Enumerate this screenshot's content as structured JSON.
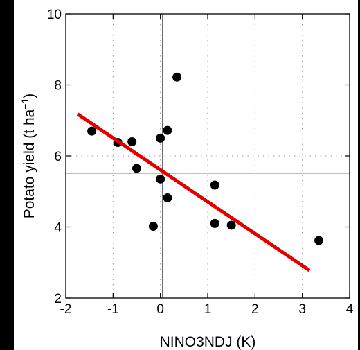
{
  "chart_data": {
    "type": "scatter",
    "xlabel": "NINO3NDJ (K)",
    "ylabel_main": "Potato yield (t ha",
    "ylabel_sup": "−1",
    "ylabel_close": ")",
    "xlim": [
      -2,
      4
    ],
    "ylim": [
      2,
      10
    ],
    "x_ticks": [
      -2,
      -1,
      0,
      1,
      2,
      3,
      4
    ],
    "x_tick_labels": [
      "-2",
      "-1",
      "0",
      "1",
      "2",
      "3",
      "4"
    ],
    "y_ticks": [
      2,
      4,
      6,
      8,
      10
    ],
    "y_tick_labels": [
      "2",
      "4",
      "6",
      "8",
      "10"
    ],
    "grid": true,
    "reference_lines": {
      "x": 0.05,
      "y": 5.52
    },
    "points": [
      {
        "x": -1.45,
        "y": 6.7
      },
      {
        "x": -0.9,
        "y": 6.38
      },
      {
        "x": -0.6,
        "y": 6.4
      },
      {
        "x": -0.5,
        "y": 5.65
      },
      {
        "x": -0.15,
        "y": 4.02
      },
      {
        "x": 0.0,
        "y": 6.5
      },
      {
        "x": 0.0,
        "y": 5.35
      },
      {
        "x": 0.15,
        "y": 6.72
      },
      {
        "x": 0.15,
        "y": 4.82
      },
      {
        "x": 0.35,
        "y": 8.22
      },
      {
        "x": 1.15,
        "y": 5.18
      },
      {
        "x": 1.15,
        "y": 4.1
      },
      {
        "x": 1.5,
        "y": 4.05
      },
      {
        "x": 3.35,
        "y": 3.62
      }
    ],
    "fit_line": {
      "x": [
        -1.75,
        3.15
      ],
      "y": [
        7.18,
        2.78
      ],
      "color": "#e00000"
    },
    "marker_color": "#000000",
    "background": "#000000",
    "plot_background": "#ffffff"
  }
}
